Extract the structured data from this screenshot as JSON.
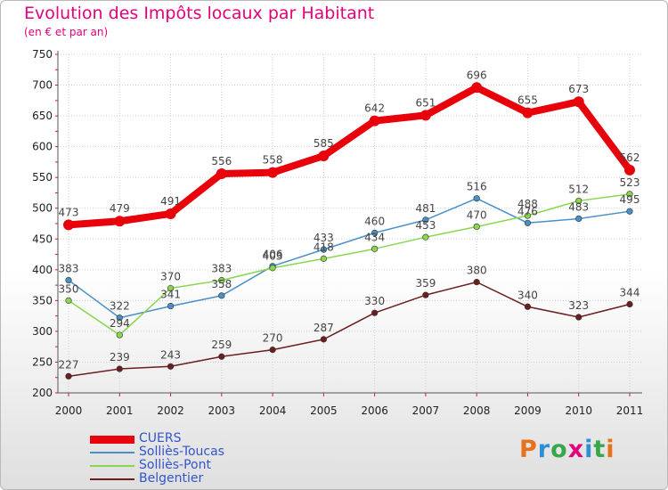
{
  "header": {
    "title": "Evolution des Impôts locaux par Habitant",
    "subtitle": "(en € et par an)"
  },
  "logo": {
    "text": "Proxiti",
    "colors": [
      "#e8711b",
      "#2f8fd6",
      "#37a84a",
      "#e3007b",
      "#2f8fd6",
      "#37a84a",
      "#e8711b"
    ]
  },
  "chart_data": {
    "type": "line",
    "title": "Evolution des Impôts locaux par Habitant",
    "subtitle": "(en € et par an)",
    "xlabel": "",
    "ylabel": "",
    "categories": [
      "2000",
      "2001",
      "2002",
      "2003",
      "2004",
      "2005",
      "2006",
      "2007",
      "2008",
      "2009",
      "2010",
      "2011"
    ],
    "ylim": [
      200,
      750
    ],
    "yticks": [
      200,
      250,
      300,
      350,
      400,
      450,
      500,
      550,
      600,
      650,
      700,
      750
    ],
    "grid": true,
    "legend_position": "bottom-left",
    "series": [
      {
        "name": "CUERS",
        "color": "#e8000b",
        "values": [
          473,
          479,
          491,
          556,
          558,
          585,
          642,
          651,
          696,
          655,
          673,
          562
        ]
      },
      {
        "name": "Solliès-Toucas",
        "color": "#4a90c8",
        "values": [
          383,
          322,
          341,
          358,
          406,
          433,
          460,
          481,
          516,
          476,
          483,
          495
        ]
      },
      {
        "name": "Solliès-Pont",
        "color": "#8ad64e",
        "values": [
          350,
          294,
          370,
          383,
          403,
          418,
          434,
          453,
          470,
          488,
          512,
          523
        ]
      },
      {
        "name": "Belgentier",
        "color": "#6b1e1e",
        "values": [
          227,
          239,
          243,
          259,
          270,
          287,
          330,
          359,
          380,
          340,
          323,
          344
        ]
      }
    ]
  }
}
